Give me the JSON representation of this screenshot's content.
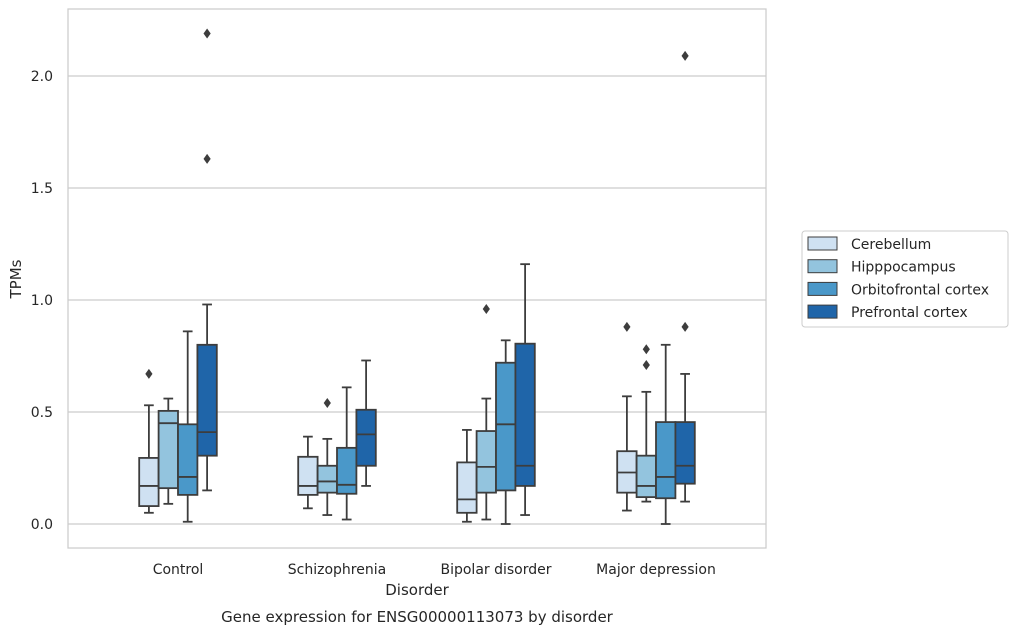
{
  "chart_data": {
    "type": "box",
    "caption": "Gene expression for ENSG00000113073 by disorder",
    "xlabel": "Disorder",
    "ylabel": "TPMs",
    "ylim": [
      -0.1,
      2.32
    ],
    "yticks": [
      0.0,
      0.5,
      1.0,
      1.5,
      2.0
    ],
    "ytick_labels": [
      "0.0",
      "0.5",
      "1.0",
      "1.5",
      "2.0"
    ],
    "grid": "horizontal",
    "legend_position": "right",
    "categories": [
      "Control",
      "Schizophrenia",
      "Bipolar disorder",
      "Major depression"
    ],
    "series": [
      {
        "name": "Cerebellum",
        "color": "#cfe1f2",
        "boxes": [
          {
            "whislo": 0.05,
            "q1": 0.08,
            "med": 0.17,
            "q3": 0.295,
            "whishi": 0.53,
            "fliers": [
              0.67
            ]
          },
          {
            "whislo": 0.07,
            "q1": 0.13,
            "med": 0.17,
            "q3": 0.3,
            "whishi": 0.39,
            "fliers": []
          },
          {
            "whislo": 0.01,
            "q1": 0.05,
            "med": 0.11,
            "q3": 0.275,
            "whishi": 0.42,
            "fliers": []
          },
          {
            "whislo": 0.06,
            "q1": 0.14,
            "med": 0.23,
            "q3": 0.325,
            "whishi": 0.57,
            "fliers": [
              0.88
            ]
          }
        ]
      },
      {
        "name": "Hipppocampus",
        "color": "#93c4de",
        "boxes": [
          {
            "whislo": 0.09,
            "q1": 0.16,
            "med": 0.45,
            "q3": 0.505,
            "whishi": 0.56,
            "fliers": []
          },
          {
            "whislo": 0.04,
            "q1": 0.14,
            "med": 0.19,
            "q3": 0.26,
            "whishi": 0.38,
            "fliers": [
              0.54
            ]
          },
          {
            "whislo": 0.02,
            "q1": 0.14,
            "med": 0.255,
            "q3": 0.415,
            "whishi": 0.56,
            "fliers": [
              0.96
            ]
          },
          {
            "whislo": 0.1,
            "q1": 0.12,
            "med": 0.17,
            "q3": 0.305,
            "whishi": 0.59,
            "fliers": [
              0.71,
              0.78
            ]
          }
        ]
      },
      {
        "name": "Orbitofrontal cortex",
        "color": "#4a98c9",
        "boxes": [
          {
            "whislo": 0.01,
            "q1": 0.13,
            "med": 0.21,
            "q3": 0.445,
            "whishi": 0.86,
            "fliers": []
          },
          {
            "whislo": 0.02,
            "q1": 0.135,
            "med": 0.175,
            "q3": 0.34,
            "whishi": 0.61,
            "fliers": []
          },
          {
            "whislo": 0.0,
            "q1": 0.15,
            "med": 0.445,
            "q3": 0.72,
            "whishi": 0.82,
            "fliers": []
          },
          {
            "whislo": 0.0,
            "q1": 0.115,
            "med": 0.21,
            "q3": 0.455,
            "whishi": 0.8,
            "fliers": []
          }
        ]
      },
      {
        "name": "Prefrontal cortex",
        "color": "#1f65a9",
        "boxes": [
          {
            "whislo": 0.15,
            "q1": 0.305,
            "med": 0.41,
            "q3": 0.8,
            "whishi": 0.98,
            "fliers": [
              1.63,
              2.19
            ]
          },
          {
            "whislo": 0.17,
            "q1": 0.26,
            "med": 0.4,
            "q3": 0.51,
            "whishi": 0.73,
            "fliers": []
          },
          {
            "whislo": 0.04,
            "q1": 0.17,
            "med": 0.26,
            "q3": 0.805,
            "whishi": 1.16,
            "fliers": []
          },
          {
            "whislo": 0.1,
            "q1": 0.18,
            "med": 0.26,
            "q3": 0.455,
            "whishi": 0.67,
            "fliers": [
              0.88,
              2.09
            ]
          }
        ]
      }
    ]
  }
}
